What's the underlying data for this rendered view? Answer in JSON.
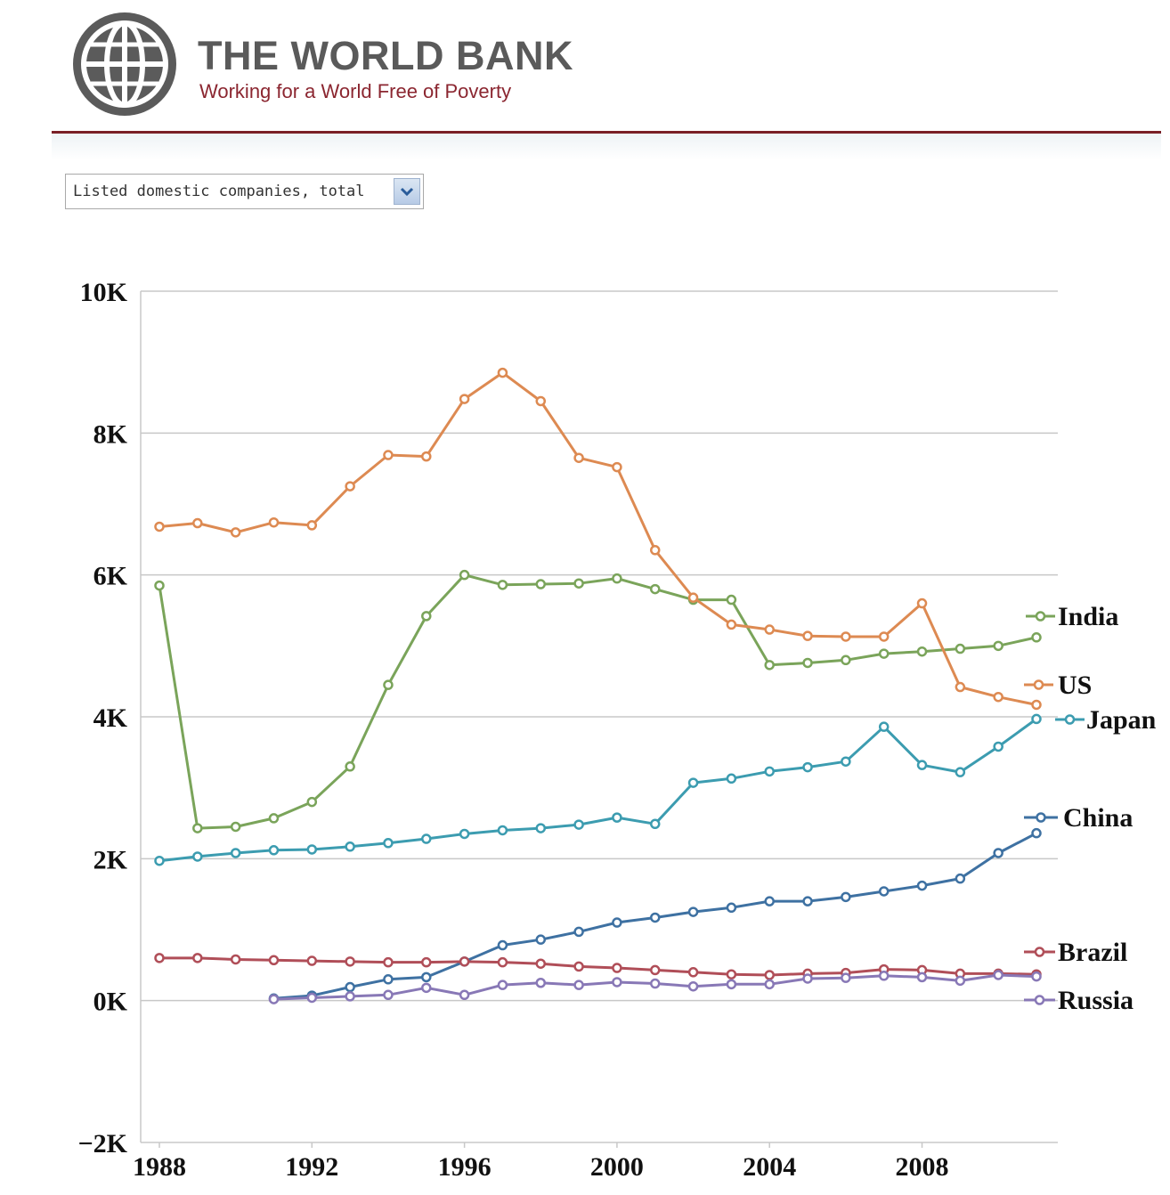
{
  "header": {
    "title": "THE WORLD BANK",
    "subtitle": "Working for a World Free of Poverty"
  },
  "indicator_select": {
    "value": "Listed domestic companies, total"
  },
  "colors": {
    "brand_red": "#8b2630",
    "India": "#7aa45a",
    "US": "#dd8a52",
    "Japan": "#3c9cb0",
    "China": "#3e71a2",
    "Brazil": "#b04e58",
    "Russia": "#8878b6"
  },
  "chart_data": {
    "type": "line",
    "title": "",
    "xlabel": "",
    "ylabel": "",
    "xlim": [
      1988,
      2011
    ],
    "ylim": [
      -2000,
      10000
    ],
    "x_ticks": [
      1988,
      1992,
      1996,
      2000,
      2004,
      2008
    ],
    "x_tick_labels": [
      "1988",
      "1992",
      "1996",
      "2000",
      "2004",
      "2008"
    ],
    "y_ticks": [
      -2000,
      0,
      2000,
      4000,
      6000,
      8000,
      10000
    ],
    "y_tick_labels": [
      "−2K",
      "0K",
      "2K",
      "4K",
      "6K",
      "8K",
      "10K"
    ],
    "grid": true,
    "legend": "inline-right",
    "series": [
      {
        "name": "India",
        "x": [
          1988,
          1989,
          1990,
          1991,
          1992,
          1993,
          1994,
          1995,
          1996,
          1997,
          1998,
          1999,
          2000,
          2001,
          2002,
          2003,
          2004,
          2005,
          2006,
          2007,
          2008,
          2009,
          2010,
          2011
        ],
        "y": [
          5850,
          2430,
          2450,
          2570,
          2800,
          3300,
          4450,
          5420,
          6000,
          5860,
          5870,
          5880,
          5950,
          5800,
          5650,
          5650,
          4730,
          4760,
          4800,
          4890,
          4920,
          4960,
          5000,
          5120
        ]
      },
      {
        "name": "US",
        "x": [
          1988,
          1989,
          1990,
          1991,
          1992,
          1993,
          1994,
          1995,
          1996,
          1997,
          1998,
          1999,
          2000,
          2001,
          2002,
          2003,
          2004,
          2005,
          2006,
          2007,
          2008,
          2009,
          2010,
          2011
        ],
        "y": [
          6680,
          6730,
          6600,
          6740,
          6700,
          7250,
          7690,
          7670,
          8480,
          8850,
          8450,
          7650,
          7520,
          6350,
          5680,
          5300,
          5230,
          5140,
          5130,
          5130,
          5600,
          4420,
          4280,
          4170
        ]
      },
      {
        "name": "Japan",
        "x": [
          1988,
          1989,
          1990,
          1991,
          1992,
          1993,
          1994,
          1995,
          1996,
          1997,
          1998,
          1999,
          2000,
          2001,
          2002,
          2003,
          2004,
          2005,
          2006,
          2007,
          2008,
          2009,
          2010,
          2011
        ],
        "y": [
          1970,
          2030,
          2080,
          2120,
          2130,
          2170,
          2220,
          2280,
          2350,
          2400,
          2430,
          2480,
          2580,
          2490,
          3070,
          3130,
          3230,
          3290,
          3370,
          3860,
          3320,
          3220,
          3580,
          3970
        ]
      },
      {
        "name": "China",
        "x": [
          1991,
          1992,
          1993,
          1994,
          1995,
          1996,
          1997,
          1998,
          1999,
          2000,
          2001,
          2002,
          2003,
          2004,
          2005,
          2006,
          2007,
          2008,
          2009,
          2010,
          2011
        ],
        "y": [
          30,
          70,
          190,
          300,
          330,
          550,
          780,
          860,
          970,
          1100,
          1170,
          1250,
          1310,
          1400,
          1400,
          1460,
          1540,
          1620,
          1720,
          2080,
          2360
        ]
      },
      {
        "name": "Brazil",
        "x": [
          1988,
          1989,
          1990,
          1991,
          1992,
          1993,
          1994,
          1995,
          1996,
          1997,
          1998,
          1999,
          2000,
          2001,
          2002,
          2003,
          2004,
          2005,
          2006,
          2007,
          2008,
          2009,
          2010,
          2011
        ],
        "y": [
          600,
          600,
          580,
          570,
          560,
          550,
          540,
          540,
          550,
          540,
          520,
          480,
          460,
          430,
          400,
          370,
          360,
          380,
          390,
          440,
          430,
          380,
          380,
          370
        ]
      },
      {
        "name": "Russia",
        "x": [
          1991,
          1992,
          1993,
          1994,
          1995,
          1996,
          1997,
          1998,
          1999,
          2000,
          2001,
          2002,
          2003,
          2004,
          2005,
          2006,
          2007,
          2008,
          2009,
          2010,
          2011
        ],
        "y": [
          20,
          40,
          60,
          80,
          180,
          80,
          220,
          250,
          220,
          260,
          240,
          200,
          230,
          230,
          310,
          320,
          350,
          330,
          280,
          360,
          340
        ]
      }
    ]
  }
}
